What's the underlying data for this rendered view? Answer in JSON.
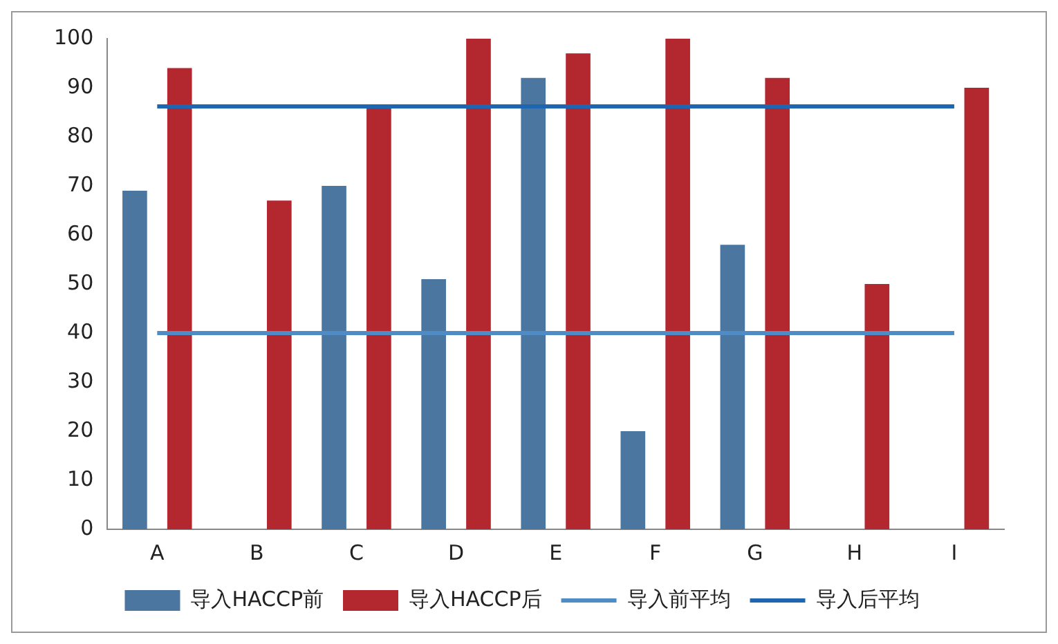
{
  "chart_data": {
    "type": "bar",
    "categories": [
      "A",
      "B",
      "C",
      "D",
      "E",
      "F",
      "G",
      "H",
      "I"
    ],
    "series": [
      {
        "name": "导入HACCP前",
        "color": "#4a76a0",
        "values": [
          69,
          0,
          70,
          51,
          92,
          20,
          58,
          0,
          0
        ]
      },
      {
        "name": "导入HACCP后",
        "color": "#b3272f",
        "values": [
          94,
          67,
          86,
          100,
          97,
          100,
          92,
          50,
          90
        ]
      },
      {
        "name": "导入前平均",
        "type": "line",
        "color": "#4f8bc4",
        "values": [
          40,
          40,
          40,
          40,
          40,
          40,
          40,
          40,
          40
        ]
      },
      {
        "name": "导入后平均",
        "type": "line",
        "color": "#1f66b0",
        "values": [
          86.2,
          86.2,
          86.2,
          86.2,
          86.2,
          86.2,
          86.2,
          86.2,
          86.2
        ]
      }
    ],
    "ylim": [
      0,
      100
    ],
    "yticks": [
      0,
      10,
      20,
      30,
      40,
      50,
      60,
      70,
      80,
      90,
      100
    ],
    "grid": false,
    "legend": "bottom",
    "marker": "none"
  }
}
